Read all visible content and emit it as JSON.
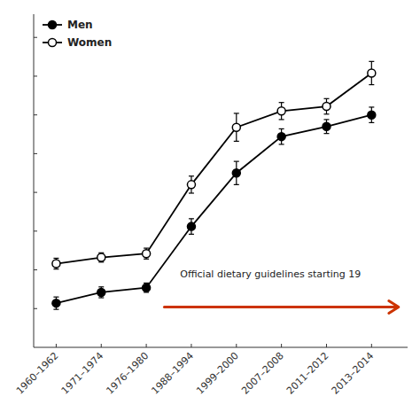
{
  "chart_data": {
    "type": "line",
    "categories": [
      "1960–1962",
      "1971–1974",
      "1976–1980",
      "1988–1994",
      "1999–2000",
      "2007–2008",
      "2011–2012",
      "2013–2014"
    ],
    "series": [
      {
        "name": "Women",
        "color": "#000000",
        "marker": "circle-open",
        "line_style": "solid",
        "values": [
          15.8,
          16.6,
          17.1,
          26.0,
          33.4,
          35.5,
          36.1,
          40.4
        ],
        "errors": [
          0.7,
          0.6,
          0.7,
          1.1,
          1.8,
          1.1,
          1.0,
          1.5
        ]
      },
      {
        "name": "Men",
        "color": "#000000",
        "marker": "circle",
        "line_style": "solid",
        "values": [
          10.7,
          12.1,
          12.7,
          20.6,
          27.5,
          32.2,
          33.5,
          35.0
        ],
        "errors": [
          0.8,
          0.7,
          0.6,
          1.0,
          1.5,
          1.0,
          0.9,
          1.0
        ]
      }
    ],
    "ylim": [
      5,
      48
    ],
    "yticks": [
      10,
      15,
      20,
      25,
      30,
      35,
      40,
      45
    ],
    "tick_labels": "x",
    "grid": false,
    "legend": "upper left",
    "annotations": [
      {
        "text": "Official dietary guidelines starting 19",
        "x": 2.75,
        "y": 13.8,
        "arrow": {
          "x_start": 2.4,
          "x_end": 7.6,
          "y": 10.2,
          "color": "#cc3300"
        }
      }
    ],
    "background_color": "#ffffff"
  }
}
